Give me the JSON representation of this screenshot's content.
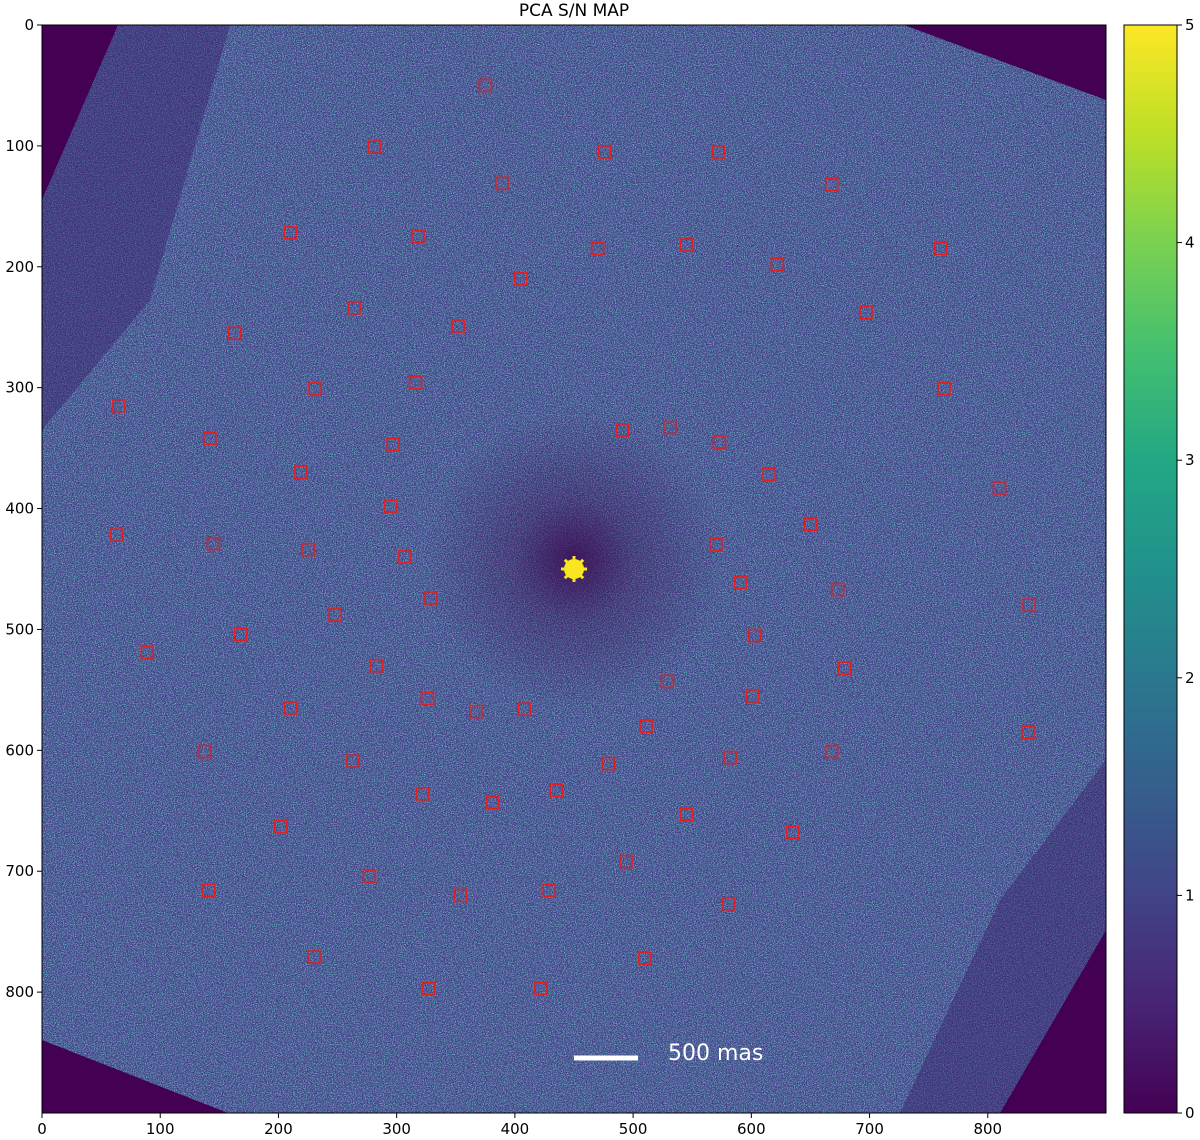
{
  "chart_data": {
    "type": "heatmap",
    "title": "PCA S/N MAP",
    "xlabel": "",
    "ylabel": "",
    "xlim": [
      0,
      900
    ],
    "ylim": [
      900,
      0
    ],
    "x_ticks": [
      "0",
      "100",
      "200",
      "300",
      "400",
      "500",
      "600",
      "700",
      "800"
    ],
    "y_ticks": [
      "0",
      "100",
      "200",
      "300",
      "400",
      "500",
      "600",
      "700",
      "800"
    ],
    "colorbar": {
      "colormap": "viridis",
      "range": [
        0,
        5
      ],
      "ticks": [
        "0",
        "1",
        "2",
        "3",
        "4",
        "5"
      ]
    },
    "star": {
      "x": 450,
      "y": 450,
      "color": "#f8e621"
    },
    "scale_bar": {
      "label": "500 mas"
    },
    "marker_color": "#e02020",
    "markers": [
      [
        375,
        50
      ],
      [
        281,
        101
      ],
      [
        476,
        105
      ],
      [
        572,
        105
      ],
      [
        389,
        131
      ],
      [
        668,
        132
      ],
      [
        210,
        172
      ],
      [
        318,
        175
      ],
      [
        470,
        185
      ],
      [
        545,
        182
      ],
      [
        760,
        185
      ],
      [
        622,
        198
      ],
      [
        405,
        210
      ],
      [
        264,
        234
      ],
      [
        352,
        249
      ],
      [
        697,
        238
      ],
      [
        163,
        255
      ],
      [
        316,
        296
      ],
      [
        231,
        301
      ],
      [
        763,
        301
      ],
      [
        65,
        315
      ],
      [
        491,
        335
      ],
      [
        531,
        333
      ],
      [
        573,
        345
      ],
      [
        142,
        342
      ],
      [
        297,
        347
      ],
      [
        219,
        370
      ],
      [
        615,
        372
      ],
      [
        810,
        383
      ],
      [
        295,
        398
      ],
      [
        650,
        413
      ],
      [
        63,
        422
      ],
      [
        145,
        429
      ],
      [
        225,
        434
      ],
      [
        570,
        430
      ],
      [
        307,
        440
      ],
      [
        591,
        461
      ],
      [
        673,
        467
      ],
      [
        329,
        474
      ],
      [
        835,
        480
      ],
      [
        248,
        488
      ],
      [
        603,
        505
      ],
      [
        168,
        504
      ],
      [
        89,
        519
      ],
      [
        283,
        530
      ],
      [
        679,
        532
      ],
      [
        529,
        543
      ],
      [
        601,
        555
      ],
      [
        326,
        557
      ],
      [
        367,
        568
      ],
      [
        408,
        566
      ],
      [
        210,
        565
      ],
      [
        511,
        580
      ],
      [
        138,
        601
      ],
      [
        668,
        601
      ],
      [
        582,
        606
      ],
      [
        263,
        609
      ],
      [
        479,
        611
      ],
      [
        834,
        585
      ],
      [
        322,
        636
      ],
      [
        381,
        643
      ],
      [
        435,
        633
      ],
      [
        545,
        653
      ],
      [
        202,
        663
      ],
      [
        635,
        668
      ],
      [
        494,
        692
      ],
      [
        277,
        704
      ],
      [
        141,
        716
      ],
      [
        354,
        720
      ],
      [
        429,
        716
      ],
      [
        581,
        727
      ],
      [
        230,
        771
      ],
      [
        510,
        772
      ],
      [
        327,
        797
      ],
      [
        422,
        797
      ]
    ]
  }
}
